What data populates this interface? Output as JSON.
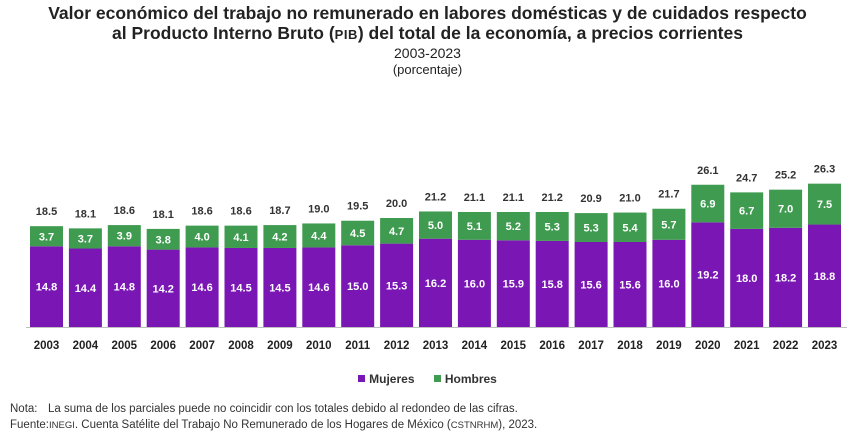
{
  "title": {
    "line1": "Valor económico del trabajo no remunerado en labores domésticas y de cuidados respecto",
    "line2_pre": "al Producto Interno Bruto (",
    "line2_abbr": "PIB",
    "line2_post": ") del total de la economía, a precios corrientes",
    "years": "2003-2023",
    "unit": "(porcentaje)"
  },
  "colors": {
    "mujeres": "#7a17b4",
    "hombres": "#3f9b4f",
    "total_label": "#333333"
  },
  "chart_data": {
    "type": "bar",
    "stacked": true,
    "categories": [
      "2003",
      "2004",
      "2005",
      "2006",
      "2007",
      "2008",
      "2009",
      "2010",
      "2011",
      "2012",
      "2013",
      "2014",
      "2015",
      "2016",
      "2017",
      "2018",
      "2019",
      "2020",
      "2021",
      "2022",
      "2023"
    ],
    "series": [
      {
        "name": "Mujeres",
        "values": [
          14.8,
          14.4,
          14.8,
          14.2,
          14.6,
          14.5,
          14.5,
          14.6,
          15.0,
          15.3,
          16.2,
          16.0,
          15.9,
          15.8,
          15.6,
          15.6,
          16.0,
          19.2,
          18.0,
          18.2,
          18.8
        ]
      },
      {
        "name": "Hombres",
        "values": [
          3.7,
          3.7,
          3.9,
          3.8,
          4.0,
          4.1,
          4.2,
          4.4,
          4.5,
          4.7,
          5.0,
          5.1,
          5.2,
          5.3,
          5.3,
          5.4,
          5.7,
          6.9,
          6.7,
          7.0,
          7.5
        ]
      }
    ],
    "totals": [
      18.5,
      18.1,
      18.6,
      18.1,
      18.6,
      18.6,
      18.7,
      19.0,
      19.5,
      20.0,
      21.2,
      21.1,
      21.1,
      21.2,
      20.9,
      21.0,
      21.7,
      26.1,
      24.7,
      25.2,
      26.3
    ],
    "legend": [
      "Mujeres",
      "Hombres"
    ],
    "legend_position": "bottom"
  },
  "notes": {
    "nota_label": "Nota:",
    "nota_text": "La suma de los parciales puede no coincidir con los totales debido al redondeo de las cifras.",
    "fuente_label": "Fuente:",
    "fuente_pre": "INEGI",
    "fuente_mid": ". Cuenta Satélite del Trabajo No Remunerado de los Hogares de México (",
    "fuente_abbr": "CSTNRHM",
    "fuente_post": "), 2023."
  }
}
